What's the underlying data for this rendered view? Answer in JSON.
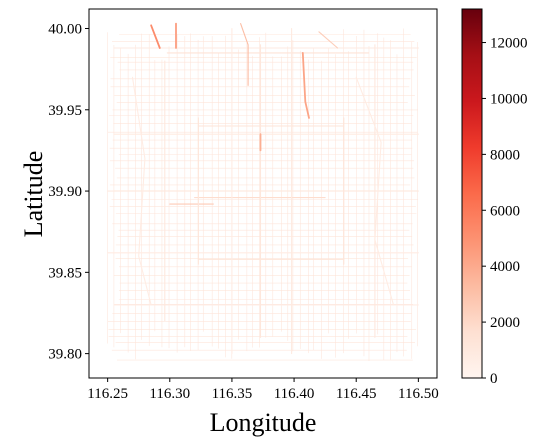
{
  "chart_data": [
    {
      "type": "heatmap",
      "subtype": "road-network-traffic-map",
      "title": "",
      "xlabel": "Longitude",
      "ylabel": "Latitude",
      "xlim": [
        116.235,
        116.515
      ],
      "ylim": [
        39.785,
        40.012
      ],
      "xticks": [
        "116.25",
        "116.30",
        "116.35",
        "116.40",
        "116.45",
        "116.50"
      ],
      "yticks": [
        "39.80",
        "39.85",
        "39.90",
        "39.95",
        "40.00"
      ],
      "grid": false,
      "colormap": "Reds",
      "roads": [
        {
          "name": "",
          "points": [
            [
              116.255,
              39.988
            ],
            [
              116.5,
              39.988
            ]
          ],
          "value": 900
        },
        {
          "name": "",
          "points": [
            [
              116.255,
              39.935
            ],
            [
              116.5,
              39.935
            ]
          ],
          "value": 800
        },
        {
          "name": "",
          "points": [
            [
              116.25,
              39.9
            ],
            [
              116.5,
              39.9
            ]
          ],
          "value": 900
        },
        {
          "name": "",
          "points": [
            [
              116.25,
              39.862
            ],
            [
              116.5,
              39.862
            ]
          ],
          "value": 700
        },
        {
          "name": "",
          "points": [
            [
              116.255,
              39.83
            ],
            [
              116.5,
              39.83
            ]
          ],
          "value": 600
        },
        {
          "name": "",
          "points": [
            [
              116.298,
              39.985
            ],
            [
              116.46,
              39.985
            ]
          ],
          "value": 1400
        },
        {
          "name": "",
          "points": [
            [
              116.323,
              39.94
            ],
            [
              116.44,
              39.94
            ]
          ],
          "value": 1300
        },
        {
          "name": "",
          "points": [
            [
              116.32,
              39.896
            ],
            [
              116.425,
              39.896
            ]
          ],
          "value": 1800
        },
        {
          "name": "",
          "points": [
            [
              116.3,
              39.892
            ],
            [
              116.335,
              39.892
            ]
          ],
          "value": 2600
        },
        {
          "name": "",
          "points": [
            [
              116.323,
              39.858
            ],
            [
              116.44,
              39.858
            ]
          ],
          "value": 1200
        },
        {
          "name": "",
          "points": [
            [
              116.296,
              39.98
            ],
            [
              116.296,
              39.82
            ]
          ],
          "value": 1000
        },
        {
          "name": "",
          "points": [
            [
              116.323,
              39.945
            ],
            [
              116.323,
              39.855
            ]
          ],
          "value": 1200
        },
        {
          "name": "",
          "points": [
            [
              116.35,
              40.0
            ],
            [
              116.35,
              39.8
            ]
          ],
          "value": 700
        },
        {
          "name": "",
          "points": [
            [
              116.373,
              39.99
            ],
            [
              116.373,
              39.81
            ]
          ],
          "value": 1100
        },
        {
          "name": "",
          "points": [
            [
              116.373,
              39.935
            ],
            [
              116.373,
              39.925
            ]
          ],
          "value": 3800
        },
        {
          "name": "",
          "points": [
            [
              116.398,
              40.0
            ],
            [
              116.398,
              39.8
            ]
          ],
          "value": 900
        },
        {
          "name": "",
          "points": [
            [
              116.44,
              39.945
            ],
            [
              116.44,
              39.855
            ]
          ],
          "value": 1200
        },
        {
          "name": "",
          "points": [
            [
              116.465,
              39.99
            ],
            [
              116.465,
              39.81
            ]
          ],
          "value": 1000
        },
        {
          "name": "",
          "points": [
            [
              116.285,
              40.002
            ],
            [
              116.292,
              39.988
            ]
          ],
          "value": 5200
        },
        {
          "name": "",
          "points": [
            [
              116.305,
              40.003
            ],
            [
              116.305,
              39.988
            ]
          ],
          "value": 4500
        },
        {
          "name": "",
          "points": [
            [
              116.357,
              40.003
            ],
            [
              116.363,
              39.99
            ],
            [
              116.363,
              39.965
            ]
          ],
          "value": 3200
        },
        {
          "name": "",
          "points": [
            [
              116.407,
              39.985
            ],
            [
              116.409,
              39.955
            ],
            [
              116.412,
              39.945
            ]
          ],
          "value": 4200
        },
        {
          "name": "",
          "points": [
            [
              116.42,
              39.998
            ],
            [
              116.435,
              39.988
            ]
          ],
          "value": 2500
        },
        {
          "name": "",
          "points": [
            [
              116.27,
              39.97
            ],
            [
              116.28,
              39.92
            ],
            [
              116.275,
              39.86
            ],
            [
              116.285,
              39.83
            ]
          ],
          "value": 700
        },
        {
          "name": "",
          "points": [
            [
              116.45,
              39.97
            ],
            [
              116.47,
              39.93
            ],
            [
              116.465,
              39.87
            ],
            [
              116.48,
              39.83
            ]
          ],
          "value": 700
        }
      ],
      "colorbar": {
        "min": 0,
        "max": 13200,
        "ticks": [
          0,
          2000,
          4000,
          6000,
          8000,
          10000,
          12000
        ],
        "tick_labels": [
          "0",
          "2000",
          "4000",
          "6000",
          "8000",
          "10000",
          "12000"
        ]
      }
    }
  ]
}
